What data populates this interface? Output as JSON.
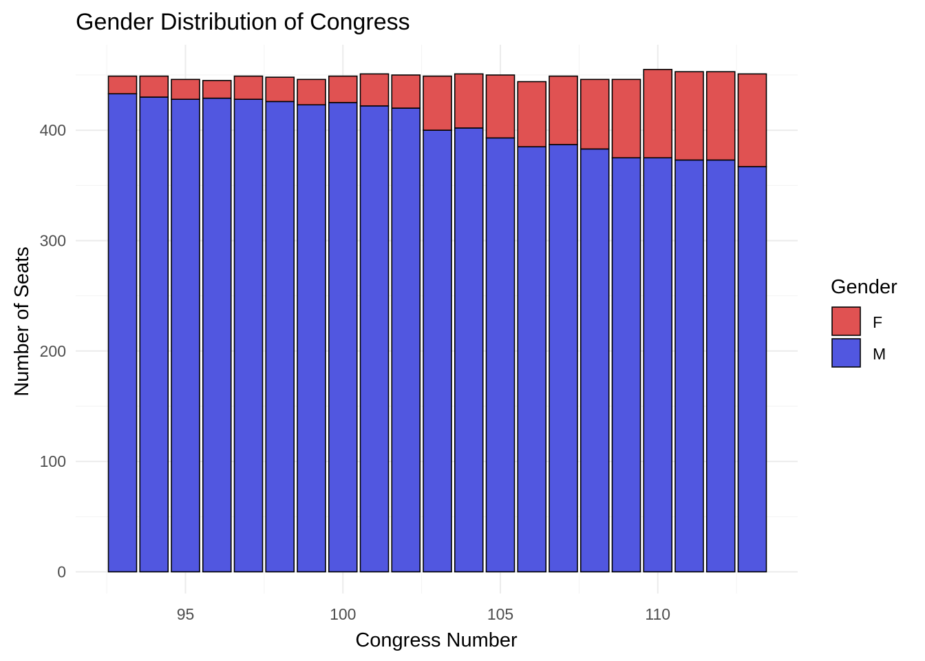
{
  "chart_data": {
    "type": "bar",
    "stacked": true,
    "title": "Gender Distribution of Congress",
    "xlabel": "Congress Number",
    "ylabel": "Number of Seats",
    "x": [
      93,
      94,
      95,
      96,
      97,
      98,
      99,
      100,
      101,
      102,
      103,
      104,
      105,
      106,
      107,
      108,
      109,
      110,
      111,
      112,
      113
    ],
    "xlim": [
      92.5,
      113.5
    ],
    "x_ticks": [
      95,
      100,
      105,
      110
    ],
    "ylim": [
      0,
      453
    ],
    "y_ticks": [
      0,
      100,
      200,
      300,
      400
    ],
    "grid": true,
    "series": [
      {
        "name": "M",
        "color": "#5157e0",
        "values": [
          433,
          430,
          428,
          429,
          428,
          426,
          423,
          425,
          422,
          420,
          400,
          402,
          393,
          385,
          387,
          383,
          375,
          375,
          373,
          373,
          367
        ]
      },
      {
        "name": "F",
        "color": "#e05252",
        "values": [
          16,
          19,
          18,
          16,
          21,
          22,
          23,
          24,
          29,
          30,
          49,
          49,
          57,
          59,
          62,
          63,
          71,
          80,
          80,
          80,
          84
        ]
      }
    ],
    "legend": {
      "title": "Gender",
      "position": "right",
      "items": [
        {
          "label": "F",
          "color": "#e05252"
        },
        {
          "label": "M",
          "color": "#5157e0"
        }
      ]
    }
  }
}
